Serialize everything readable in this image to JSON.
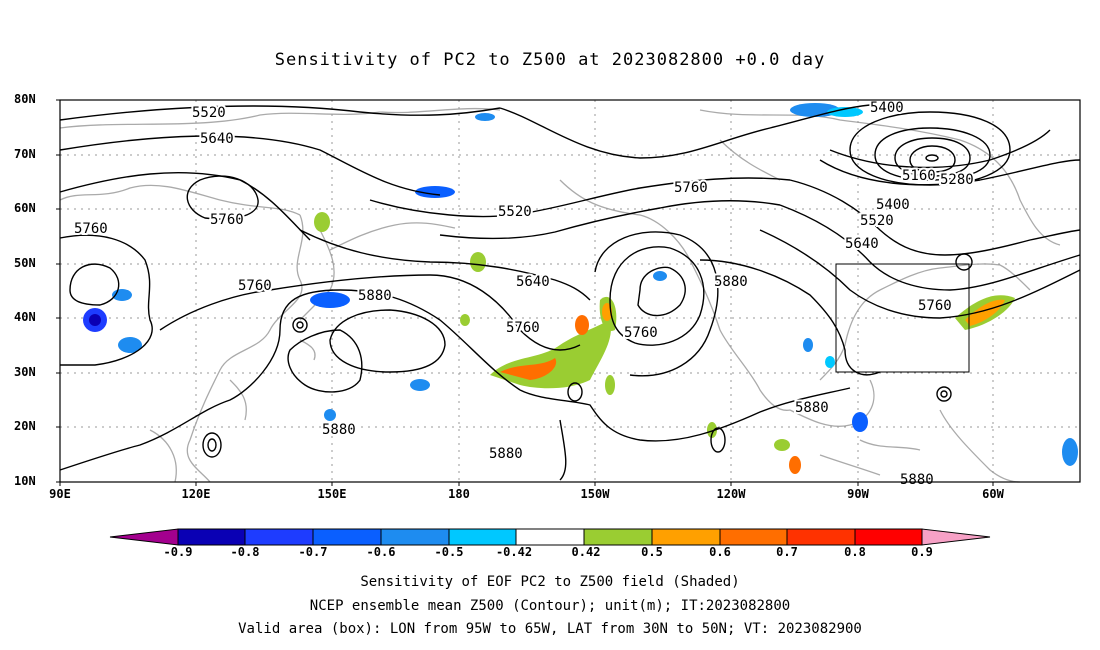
{
  "title": "Sensitivity of PC2 to Z500 at 2023082800 +0.0 day",
  "lat_labels": [
    "80N",
    "70N",
    "60N",
    "50N",
    "40N",
    "30N",
    "20N",
    "10N"
  ],
  "lon_labels": [
    "90E",
    "120E",
    "150E",
    "180",
    "150W",
    "120W",
    "90W",
    "60W"
  ],
  "contour_labels": [
    "5520",
    "5640",
    "5760",
    "5760",
    "5760",
    "5520",
    "5640",
    "5760",
    "5880",
    "5760",
    "5880",
    "5760",
    "5880",
    "5880",
    "5880",
    "5880",
    "5760",
    "5640",
    "5520",
    "5400",
    "5280",
    "5160",
    "5400",
    "5760",
    "5880"
  ],
  "colorbar": {
    "labels": [
      "-0.9",
      "-0.8",
      "-0.7",
      "-0.6",
      "-0.5",
      "-0.42",
      "0.42",
      "0.5",
      "0.6",
      "0.7",
      "0.8",
      "0.9"
    ],
    "colors": [
      "#a3008e",
      "#0a00b4",
      "#1e3cff",
      "#0a5fff",
      "#1e8cf0",
      "#00c8ff",
      "#ffffff",
      "#9acd32",
      "#ffa000",
      "#ff6e00",
      "#ff3200",
      "#ff0000",
      "#f7a1c6"
    ]
  },
  "validation_box": {
    "lon_from": "95W",
    "lon_to": "65W",
    "lat_from": "30N",
    "lat_to": "50N"
  },
  "captions": [
    "Sensitivity of EOF PC2 to Z500 field (Shaded)",
    "NCEP ensemble mean Z500 (Contour); unit(m); IT:2023082800",
    "Valid area (box): LON from 95W to 65W, LAT from 30N to 50N; VT: 2023082900"
  ]
}
